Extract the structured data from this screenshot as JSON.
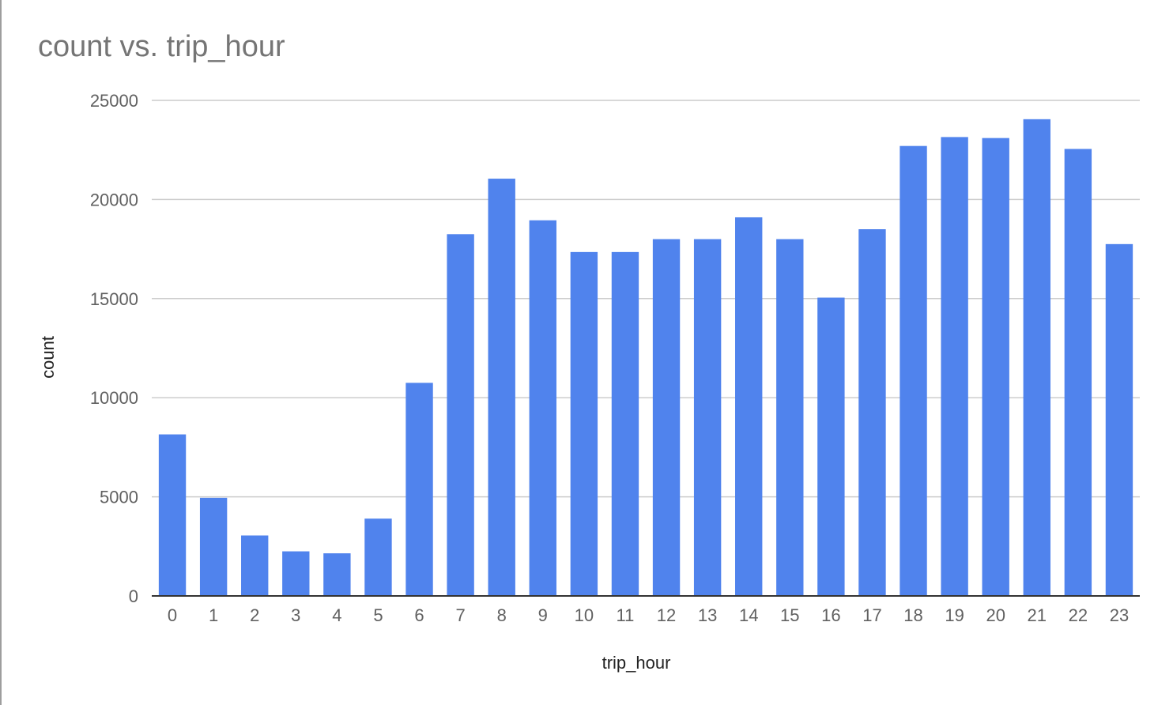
{
  "chart_data": {
    "type": "bar",
    "title": "count vs. trip_hour",
    "xlabel": "trip_hour",
    "ylabel": "count",
    "ylim": [
      0,
      25000
    ],
    "yticks": [
      "0",
      "5000",
      "10000",
      "15000",
      "20000",
      "25000"
    ],
    "grid": true,
    "legend": "none",
    "bar_color": "#5083ED",
    "categories": [
      "0",
      "1",
      "2",
      "3",
      "4",
      "5",
      "6",
      "7",
      "8",
      "9",
      "10",
      "11",
      "12",
      "13",
      "14",
      "15",
      "16",
      "17",
      "18",
      "19",
      "20",
      "21",
      "22",
      "23"
    ],
    "values": [
      8150,
      4950,
      3050,
      2250,
      2150,
      3900,
      10750,
      18250,
      21050,
      18950,
      17350,
      17350,
      18000,
      18000,
      19100,
      18000,
      15050,
      18500,
      22700,
      23150,
      23100,
      24050,
      22550,
      17750
    ]
  }
}
